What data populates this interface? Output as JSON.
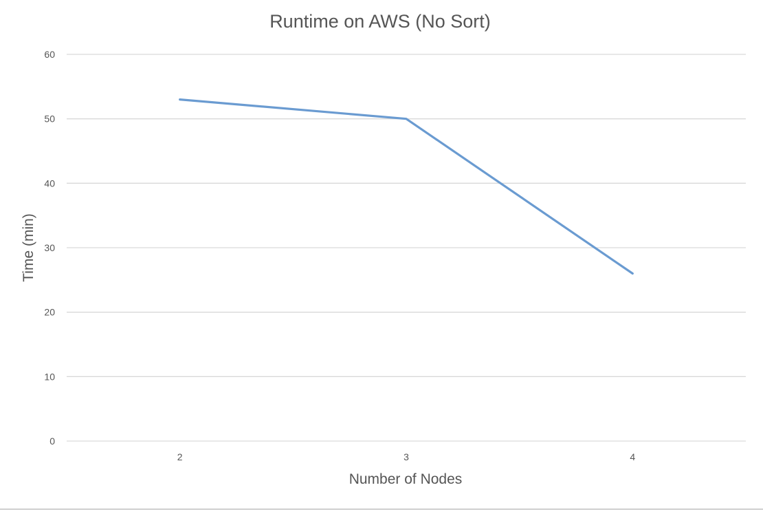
{
  "chart_data": {
    "type": "line",
    "title": "Runtime on AWS (No Sort)",
    "xlabel": "Number of Nodes",
    "ylabel": "Time (min)",
    "categories": [
      "2",
      "3",
      "4"
    ],
    "series": [
      {
        "values": [
          53,
          50,
          26
        ]
      }
    ],
    "ylim": [
      0,
      60
    ],
    "yticks": [
      0,
      10,
      20,
      30,
      40,
      50,
      60
    ],
    "grid": true,
    "legend": "none",
    "colors": {
      "series": "#6a9bd1",
      "grid": "#d9d9d9",
      "text": "#555555"
    }
  }
}
